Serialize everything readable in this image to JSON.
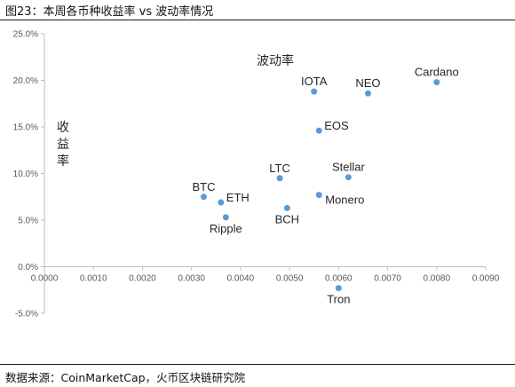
{
  "header": {
    "title": "图23：本周各币种收益率 vs 波动率情况"
  },
  "footer": {
    "source": "数据来源：CoinMarketCap，火币区块链研究院"
  },
  "chart_data": {
    "type": "scatter",
    "title": "",
    "xlabel": "波动率",
    "ylabel": "收益率",
    "xlim": [
      0,
      0.009
    ],
    "ylim": [
      -0.05,
      0.25
    ],
    "x_ticks": [
      "0.0000",
      "0.0010",
      "0.0020",
      "0.0030",
      "0.0040",
      "0.0050",
      "0.0060",
      "0.0070",
      "0.0080",
      "0.0090"
    ],
    "x_tick_values": [
      0,
      0.001,
      0.002,
      0.003,
      0.004,
      0.005,
      0.006,
      0.007,
      0.008,
      0.009
    ],
    "y_ticks": [
      "25.0%",
      "20.0%",
      "15.0%",
      "10.0%",
      "5.0%",
      "0.0%",
      "-5.0%"
    ],
    "y_tick_values": [
      0.25,
      0.2,
      0.15,
      0.1,
      0.05,
      0,
      -0.05
    ],
    "grid": false,
    "point_color": "#5b9bd5",
    "points": [
      {
        "name": "BTC",
        "x": 0.00325,
        "y": 0.075,
        "label_pos": "top"
      },
      {
        "name": "ETH",
        "x": 0.0036,
        "y": 0.069,
        "label_pos": "right"
      },
      {
        "name": "Ripple",
        "x": 0.0037,
        "y": 0.053,
        "label_pos": "bottom"
      },
      {
        "name": "LTC",
        "x": 0.0048,
        "y": 0.095,
        "label_pos": "top"
      },
      {
        "name": "BCH",
        "x": 0.00495,
        "y": 0.063,
        "label_pos": "bottom"
      },
      {
        "name": "IOTA",
        "x": 0.0055,
        "y": 0.188,
        "label_pos": "top"
      },
      {
        "name": "EOS",
        "x": 0.0056,
        "y": 0.146,
        "label_pos": "right"
      },
      {
        "name": "Monero",
        "x": 0.0056,
        "y": 0.077,
        "label_pos": "right-below"
      },
      {
        "name": "Stellar",
        "x": 0.0062,
        "y": 0.096,
        "label_pos": "top"
      },
      {
        "name": "Tron",
        "x": 0.006,
        "y": -0.023,
        "label_pos": "bottom"
      },
      {
        "name": "NEO",
        "x": 0.0066,
        "y": 0.186,
        "label_pos": "top"
      },
      {
        "name": "Cardano",
        "x": 0.008,
        "y": 0.198,
        "label_pos": "top"
      }
    ]
  }
}
